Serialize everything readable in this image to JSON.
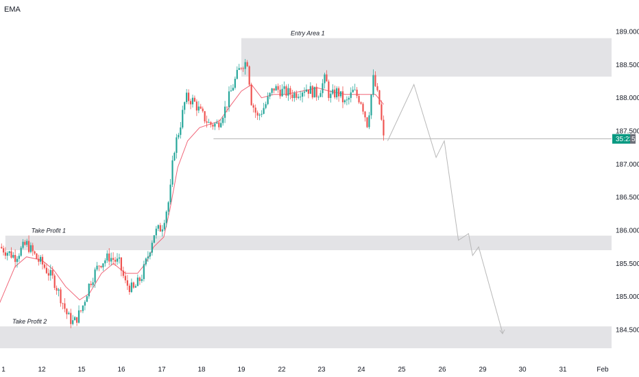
{
  "legend": {
    "label": "EMA"
  },
  "colors": {
    "up": "#26a69a",
    "down": "#ef5350",
    "ema": "#f06477",
    "zone": "#e3e3e6",
    "projection": "#b8b8b8",
    "price_line": "#9e9e9e",
    "price_tag": "#089981"
  },
  "chart_data": {
    "type": "candlestick",
    "title": "",
    "ylim": [
      184.2,
      189.15
    ],
    "y_ticks": [
      "184.500",
      "185.000",
      "185.500",
      "186.000",
      "186.500",
      "187.000",
      "187.500",
      "188.000",
      "188.500",
      "189.000"
    ],
    "y_tick_values": [
      184.5,
      185.0,
      185.5,
      186.0,
      186.5,
      187.0,
      187.5,
      188.0,
      188.5,
      189.0
    ],
    "x_ticks": [
      "1",
      "12",
      "15",
      "16",
      "17",
      "18",
      "19",
      "22",
      "23",
      "24",
      "25",
      "26",
      "29",
      "30",
      "31",
      "Feb"
    ],
    "x_tick_positions": [
      0,
      1,
      2,
      3,
      4,
      5,
      6,
      7,
      8,
      9,
      10,
      11,
      12,
      13,
      14,
      15
    ],
    "zones": [
      {
        "label": "Entry Area 1",
        "y_low": 188.32,
        "y_high": 188.9,
        "x_start": 6.0
      },
      {
        "label": "Take Profit 1",
        "y_low": 185.7,
        "y_high": 185.92,
        "x_start": 0.05
      },
      {
        "label": "Take Profit 2",
        "y_low": 184.22,
        "y_high": 184.55,
        "x_start": -0.1
      }
    ],
    "current_price_label": "35:23",
    "current_price_suffix": "5",
    "current_price": 187.38,
    "price_line_x_start": 5.3,
    "price_path": [
      [
        -0.1,
        185.75
      ],
      [
        0.3,
        185.6
      ],
      [
        0.6,
        185.8
      ],
      [
        0.9,
        185.55
      ],
      [
        1.0,
        185.5
      ],
      [
        1.3,
        185.25
      ],
      [
        1.5,
        184.95
      ],
      [
        1.65,
        184.7
      ],
      [
        1.8,
        184.6
      ],
      [
        2.0,
        184.8
      ],
      [
        2.2,
        185.2
      ],
      [
        2.45,
        185.5
      ],
      [
        2.7,
        185.6
      ],
      [
        2.95,
        185.5
      ],
      [
        3.1,
        185.2
      ],
      [
        3.3,
        185.1
      ],
      [
        3.5,
        185.3
      ],
      [
        3.65,
        185.6
      ],
      [
        3.8,
        185.95
      ],
      [
        4.0,
        186.05
      ],
      [
        4.2,
        186.5
      ],
      [
        4.3,
        187.2
      ],
      [
        4.45,
        187.55
      ],
      [
        4.6,
        188.0
      ],
      [
        4.8,
        187.95
      ],
      [
        5.0,
        187.75
      ],
      [
        5.2,
        187.6
      ],
      [
        5.4,
        187.6
      ],
      [
        5.6,
        187.85
      ],
      [
        5.8,
        188.2
      ],
      [
        6.0,
        188.5
      ],
      [
        6.15,
        188.55
      ],
      [
        6.25,
        187.95
      ],
      [
        6.4,
        187.7
      ],
      [
        6.6,
        187.9
      ],
      [
        6.8,
        188.15
      ],
      [
        7.0,
        188.1
      ],
      [
        7.3,
        188.05
      ],
      [
        7.6,
        188.15
      ],
      [
        7.9,
        188.05
      ],
      [
        8.1,
        188.3
      ],
      [
        8.2,
        188.0
      ],
      [
        8.4,
        188.1
      ],
      [
        8.6,
        187.9
      ],
      [
        8.8,
        188.1
      ],
      [
        9.0,
        187.95
      ],
      [
        9.15,
        187.6
      ],
      [
        9.3,
        188.3
      ],
      [
        9.45,
        187.9
      ],
      [
        9.55,
        187.38
      ]
    ],
    "ema_path": [
      [
        -0.1,
        184.9
      ],
      [
        0.3,
        185.45
      ],
      [
        0.6,
        185.6
      ],
      [
        1.0,
        185.55
      ],
      [
        1.3,
        185.4
      ],
      [
        1.6,
        185.15
      ],
      [
        1.95,
        184.95
      ],
      [
        2.2,
        185.05
      ],
      [
        2.5,
        185.35
      ],
      [
        2.8,
        185.5
      ],
      [
        3.1,
        185.35
      ],
      [
        3.4,
        185.35
      ],
      [
        3.6,
        185.5
      ],
      [
        3.8,
        185.75
      ],
      [
        4.05,
        185.9
      ],
      [
        4.2,
        186.3
      ],
      [
        4.4,
        186.95
      ],
      [
        4.65,
        187.35
      ],
      [
        4.95,
        187.55
      ],
      [
        5.2,
        187.6
      ],
      [
        5.45,
        187.65
      ],
      [
        5.75,
        187.9
      ],
      [
        6.0,
        188.1
      ],
      [
        6.25,
        188.2
      ],
      [
        6.5,
        188.0
      ],
      [
        6.8,
        188.05
      ],
      [
        7.1,
        188.05
      ],
      [
        7.5,
        188.1
      ],
      [
        7.9,
        188.15
      ],
      [
        8.2,
        188.1
      ],
      [
        8.6,
        188.05
      ],
      [
        9.0,
        188.05
      ],
      [
        9.2,
        188.05
      ],
      [
        9.35,
        188.05
      ],
      [
        9.55,
        187.9
      ]
    ],
    "projection_path": [
      [
        9.65,
        187.35
      ],
      [
        10.3,
        188.2
      ],
      [
        10.85,
        187.1
      ],
      [
        11.05,
        187.35
      ],
      [
        11.4,
        185.85
      ],
      [
        11.65,
        185.95
      ],
      [
        11.75,
        185.62
      ],
      [
        11.9,
        185.75
      ],
      [
        12.5,
        184.45
      ]
    ]
  }
}
